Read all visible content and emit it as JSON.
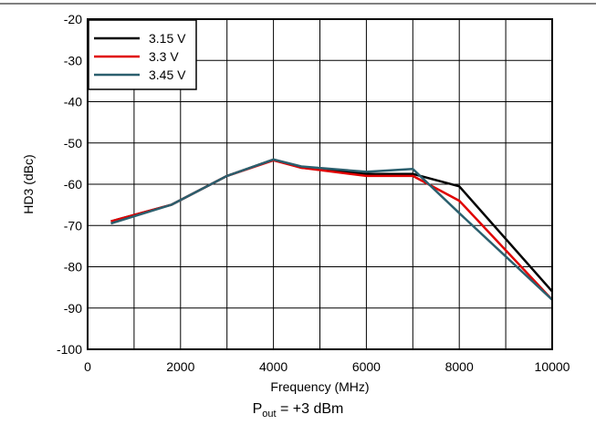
{
  "chart_data": {
    "type": "line",
    "title": "",
    "xlabel": "Frequency (MHz)",
    "ylabel": "HD3 (dBc)",
    "xlim": [
      0,
      10000
    ],
    "ylim": [
      -100,
      -20
    ],
    "xticks": [
      0,
      2000,
      4000,
      6000,
      8000,
      10000
    ],
    "yticks": [
      -20,
      -30,
      -40,
      -50,
      -60,
      -70,
      -80,
      -90,
      -100
    ],
    "grid": true,
    "legend_position": "top-left",
    "series": [
      {
        "name": "3.15 V",
        "color": "#000000",
        "x": [
          500,
          1800,
          3000,
          4000,
          4600,
          6000,
          7000,
          8000,
          10000
        ],
        "y": [
          -69,
          -65,
          -58,
          -54,
          -56,
          -57.5,
          -57.5,
          -60.5,
          -86
        ]
      },
      {
        "name": "3.3 V",
        "color": "#e00000",
        "x": [
          500,
          1800,
          3000,
          4000,
          4600,
          6000,
          7000,
          8000,
          10000
        ],
        "y": [
          -69,
          -65,
          -58,
          -54.2,
          -56,
          -58,
          -58,
          -64,
          -88
        ]
      },
      {
        "name": "3.45 V",
        "color": "#2b5f6e",
        "x": [
          500,
          1800,
          3000,
          4000,
          4600,
          6000,
          7000,
          8000,
          10000
        ],
        "y": [
          -69.5,
          -65,
          -58,
          -54,
          -55.7,
          -57,
          -56.3,
          -67,
          -88
        ]
      }
    ]
  },
  "caption": {
    "p": "P",
    "sub": "out",
    "rest": " = +3 dBm"
  }
}
